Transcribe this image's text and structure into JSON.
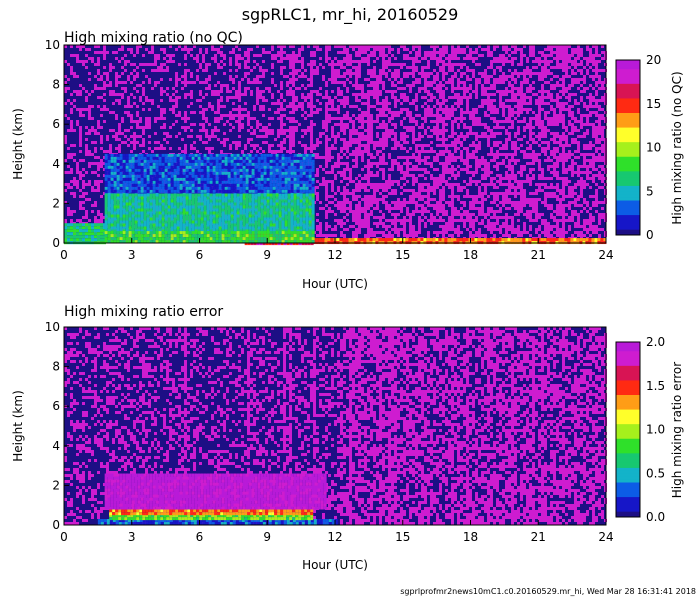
{
  "figure_title": "sgpRLC1, mr_hi, 20160529",
  "footer": "sgprlprofmr2news10mC1.c0.20160529.mr_hi, Wed Mar 28 16:31:41 2018",
  "colors": {
    "no_data_blue": "#1d0f85",
    "scale": [
      "#1d0f85",
      "#1616c8",
      "#0c5ce6",
      "#13b3c9",
      "#17c870",
      "#2fe02a",
      "#a6f01c",
      "#ffff2a",
      "#ff9d16",
      "#ff2a12",
      "#d81454",
      "#ce1cd0",
      "#b81ad8"
    ]
  },
  "chart_data": [
    {
      "type": "heatmap",
      "title": "High mixing ratio (no QC)",
      "xlabel": "Hour (UTC)",
      "ylabel": "Height (km)",
      "xlim": [
        0,
        24
      ],
      "ylim": [
        0,
        10
      ],
      "x_ticks": [
        "0",
        "3",
        "6",
        "9",
        "12",
        "15",
        "18",
        "21",
        "24"
      ],
      "y_ticks": [
        "0",
        "2",
        "4",
        "6",
        "8",
        "10"
      ],
      "colorbar": {
        "label": "High mixing ratio (no QC)",
        "range": [
          0,
          20
        ],
        "ticks": [
          "0",
          "5",
          "10",
          "15",
          "20"
        ]
      },
      "regions": [
        {
          "x": [
            1.8,
            11.0
          ],
          "y": [
            0,
            0.6
          ],
          "value": 8
        },
        {
          "x": [
            1.8,
            11.0
          ],
          "y": [
            0.6,
            2.5
          ],
          "value": 6
        },
        {
          "x": [
            1.8,
            11.0
          ],
          "y": [
            2.5,
            4.5
          ],
          "value": 3
        },
        {
          "x": [
            8.0,
            11.0
          ],
          "y": [
            0,
            0.5
          ],
          "value": 16
        },
        {
          "x": [
            11.0,
            24.0
          ],
          "y": [
            0,
            0.25
          ],
          "value": 14
        },
        {
          "x": [
            0,
            1.8
          ],
          "y": [
            0,
            1.0
          ],
          "value": 7
        },
        {
          "x": [
            0,
            24
          ],
          "y": [
            0,
            10
          ],
          "value": 19,
          "note": "noisy background above boundary layer"
        }
      ]
    },
    {
      "type": "heatmap",
      "title": "High mixing ratio error",
      "xlabel": "Hour (UTC)",
      "ylabel": "Height (km)",
      "xlim": [
        0,
        24
      ],
      "ylim": [
        0,
        10
      ],
      "x_ticks": [
        "0",
        "3",
        "6",
        "9",
        "12",
        "15",
        "18",
        "21",
        "24"
      ],
      "y_ticks": [
        "0",
        "2",
        "4",
        "6",
        "8",
        "10"
      ],
      "colorbar": {
        "label": "High mixing ratio error",
        "range": [
          0,
          2.0
        ],
        "ticks": [
          "0.0",
          "0.5",
          "1.0",
          "1.5",
          "2.0"
        ]
      },
      "regions": [
        {
          "x": [
            1.8,
            11.5
          ],
          "y": [
            0.8,
            2.6
          ],
          "value": 2.0
        },
        {
          "x": [
            2.0,
            11.0
          ],
          "y": [
            0.55,
            0.8
          ],
          "value": 1.4
        },
        {
          "x": [
            2.0,
            11.0
          ],
          "y": [
            0.3,
            0.55
          ],
          "value": 0.9
        },
        {
          "x": [
            1.5,
            12.0
          ],
          "y": [
            0,
            0.3
          ],
          "value": 0.3
        },
        {
          "x": [
            0,
            24
          ],
          "y": [
            0,
            10
          ],
          "value": 1.9,
          "note": "noisy background above boundary layer"
        }
      ]
    }
  ]
}
